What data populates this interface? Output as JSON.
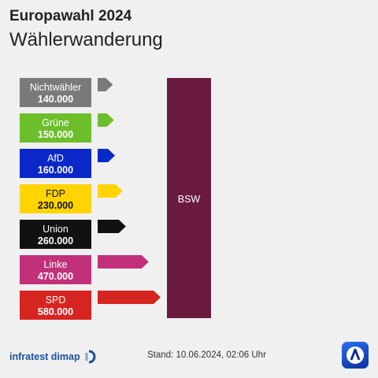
{
  "header": {
    "title": "Europawahl 2024",
    "subtitle": "Wählerwanderung"
  },
  "chart_data": {
    "type": "bar",
    "target": "BSW",
    "target_color": "#6b1a3f",
    "flows": [
      {
        "source": "Nichtwähler",
        "value": 140000,
        "value_label": "140.000",
        "color": "#7a7a7a"
      },
      {
        "source": "Grüne",
        "value": 150000,
        "value_label": "150.000",
        "color": "#6cbf2b"
      },
      {
        "source": "AfD",
        "value": 160000,
        "value_label": "160.000",
        "color": "#0a28c8"
      },
      {
        "source": "FDP",
        "value": 230000,
        "value_label": "230.000",
        "color": "#ffd400"
      },
      {
        "source": "Union",
        "value": 260000,
        "value_label": "260.000",
        "color": "#111111"
      },
      {
        "source": "Linke",
        "value": 470000,
        "value_label": "470.000",
        "color": "#c2307a"
      },
      {
        "source": "SPD",
        "value": 580000,
        "value_label": "580.000",
        "color": "#d62520"
      }
    ]
  },
  "footer": {
    "brand": "infratest dimap",
    "stand": "Stand:  10.06.2024, 02:06 Uhr",
    "brand_color": "#1a4fa0"
  }
}
